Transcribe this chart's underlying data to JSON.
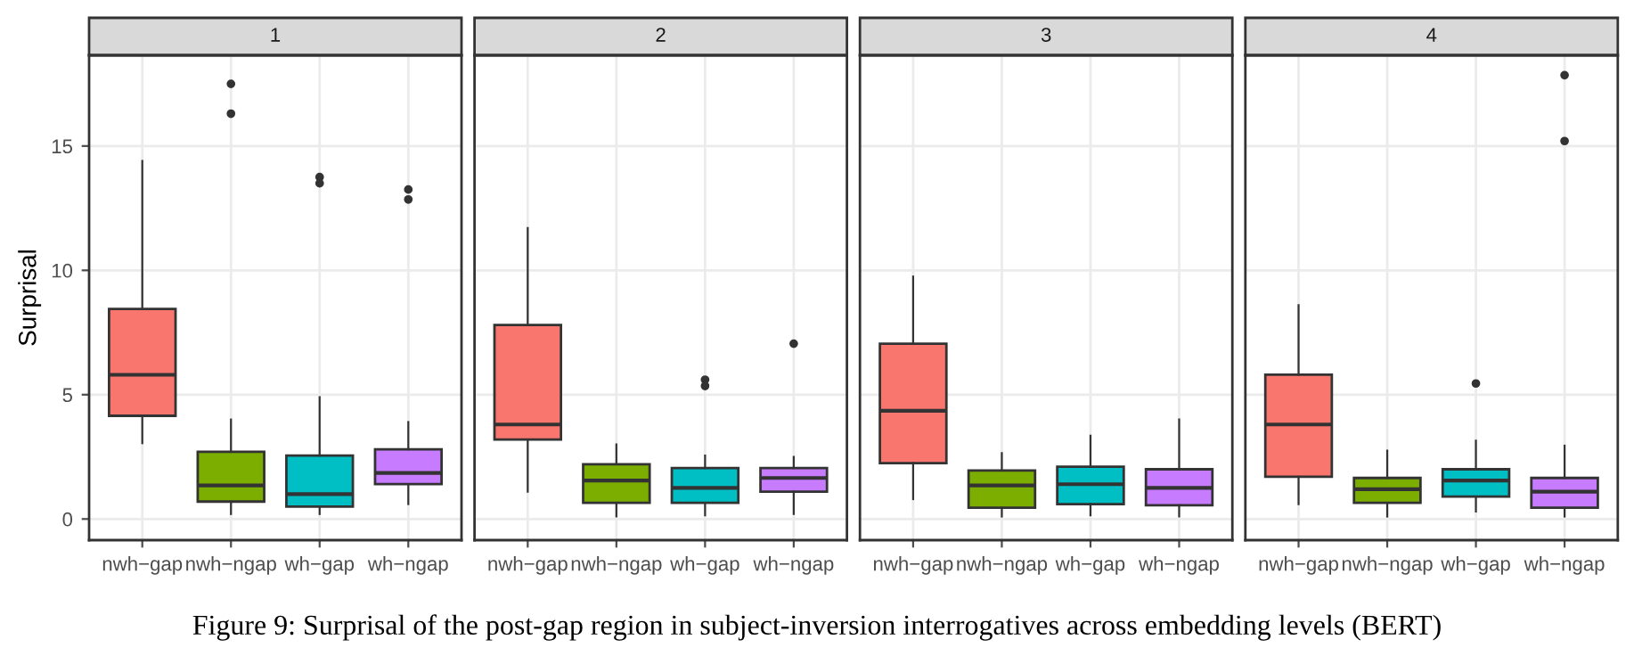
{
  "chart_data": [
    {
      "type": "box",
      "title": "1",
      "ylabel": "Surprisal",
      "categories": [
        "nwh−gap",
        "nwh−ngap",
        "wh−gap",
        "wh−ngap"
      ],
      "colors": [
        "#f8766d",
        "#7cae00",
        "#00bfc4",
        "#c77cff"
      ],
      "ylim": [
        -0.85,
        18.65
      ],
      "yticks": [
        0,
        5,
        10,
        15
      ],
      "grid": true,
      "boxes": [
        {
          "low": 3.05,
          "q1": 4.15,
          "median": 5.8,
          "q3": 8.45,
          "high": 14.4
        },
        {
          "low": 0.2,
          "q1": 0.7,
          "median": 1.35,
          "q3": 2.7,
          "high": 4.0,
          "outliers": [
            17.5,
            16.3
          ]
        },
        {
          "low": 0.2,
          "q1": 0.5,
          "median": 1.0,
          "q3": 2.55,
          "high": 4.9,
          "outliers": [
            13.75,
            13.5
          ]
        },
        {
          "low": 0.6,
          "q1": 1.4,
          "median": 1.85,
          "q3": 2.8,
          "high": 3.9,
          "outliers": [
            13.25,
            12.85
          ]
        }
      ],
      "annotations": [
        "Figure 9: Surprisal of the post-gap region in subject-inversion interrogatives across embedding levels (BERT)"
      ]
    },
    {
      "type": "box",
      "title": "2",
      "categories": [
        "nwh−gap",
        "nwh−ngap",
        "wh−gap",
        "wh−ngap"
      ],
      "colors": [
        "#f8766d",
        "#7cae00",
        "#00bfc4",
        "#c77cff"
      ],
      "ylim": [
        -0.85,
        18.65
      ],
      "yticks": [
        0,
        5,
        10,
        15
      ],
      "grid": true,
      "tick_labels": "x",
      "boxes": [
        {
          "low": 1.1,
          "q1": 3.2,
          "median": 3.8,
          "q3": 7.8,
          "high": 11.7
        },
        {
          "low": 0.1,
          "q1": 0.65,
          "median": 1.55,
          "q3": 2.2,
          "high": 3.0
        },
        {
          "low": 0.15,
          "q1": 0.65,
          "median": 1.25,
          "q3": 2.05,
          "high": 2.55,
          "outliers": [
            5.6,
            5.35
          ]
        },
        {
          "low": 0.2,
          "q1": 1.1,
          "median": 1.65,
          "q3": 2.05,
          "high": 2.5,
          "outliers": [
            7.05
          ]
        }
      ]
    },
    {
      "type": "box",
      "title": "3",
      "categories": [
        "nwh−gap",
        "nwh−ngap",
        "wh−gap",
        "wh−ngap"
      ],
      "colors": [
        "#f8766d",
        "#7cae00",
        "#00bfc4",
        "#c77cff"
      ],
      "ylim": [
        -0.85,
        18.65
      ],
      "yticks": [
        0,
        5,
        10,
        15
      ],
      "grid": true,
      "tick_labels": "x",
      "boxes": [
        {
          "low": 0.8,
          "q1": 2.25,
          "median": 4.35,
          "q3": 7.05,
          "high": 9.75
        },
        {
          "low": 0.1,
          "q1": 0.45,
          "median": 1.35,
          "q3": 1.95,
          "high": 2.65
        },
        {
          "low": 0.15,
          "q1": 0.6,
          "median": 1.4,
          "q3": 2.1,
          "high": 3.35
        },
        {
          "low": 0.1,
          "q1": 0.55,
          "median": 1.25,
          "q3": 2.0,
          "high": 4.0
        }
      ]
    },
    {
      "type": "box",
      "title": "4",
      "categories": [
        "nwh−gap",
        "nwh−ngap",
        "wh−gap",
        "wh−ngap"
      ],
      "colors": [
        "#f8766d",
        "#7cae00",
        "#00bfc4",
        "#c77cff"
      ],
      "ylim": [
        -0.85,
        18.65
      ],
      "yticks": [
        0,
        5,
        10,
        15
      ],
      "grid": true,
      "tick_labels": "x",
      "boxes": [
        {
          "low": 0.6,
          "q1": 1.7,
          "median": 3.8,
          "q3": 5.8,
          "high": 8.6
        },
        {
          "low": 0.1,
          "q1": 0.65,
          "median": 1.2,
          "q3": 1.65,
          "high": 2.75
        },
        {
          "low": 0.3,
          "q1": 0.9,
          "median": 1.55,
          "q3": 2.0,
          "high": 3.15,
          "outliers": [
            5.45
          ]
        },
        {
          "low": 0.1,
          "q1": 0.45,
          "median": 1.1,
          "q3": 1.65,
          "high": 2.95,
          "outliers": [
            17.85,
            15.2
          ]
        }
      ]
    }
  ]
}
